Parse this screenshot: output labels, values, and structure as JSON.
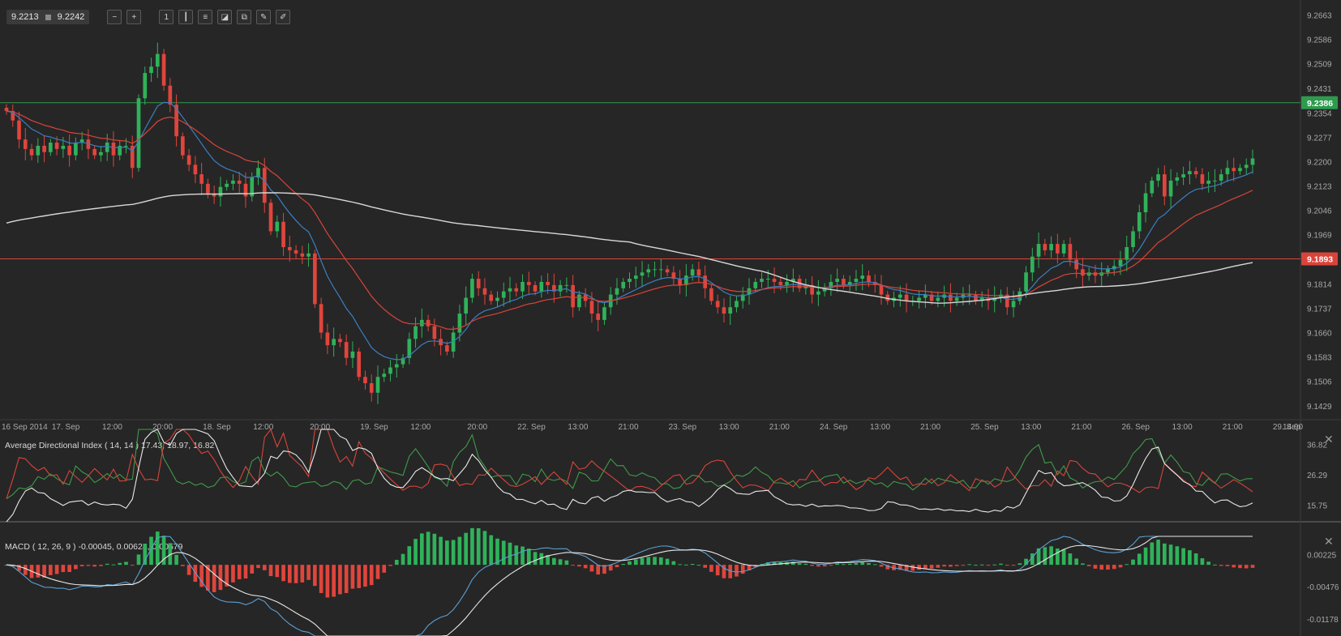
{
  "toolbar": {
    "bid": "9.2213",
    "ask": "9.2242",
    "icons": [
      "zoom-out-icon",
      "zoom-in-icon",
      "timeframe-icon",
      "candles-icon",
      "indicators-icon",
      "draw-icon",
      "layers-icon",
      "edit-icon",
      "pen-icon"
    ],
    "timeframe_label": "1"
  },
  "colors": {
    "background": "#262626",
    "up_candle": "#2fb25a",
    "down_candle": "#e0453c",
    "ma_fast": "#3a7fc2",
    "ma_mid": "#d9443a",
    "ma_slow": "#d8d8d8",
    "green_level": "#2e9a4e",
    "red_level": "#d9443a"
  },
  "chart_data": [
    {
      "type": "candlestick",
      "name": "price",
      "y_ticks": [
        "9.2663",
        "9.2586",
        "9.2509",
        "9.2431",
        "9.2354",
        "9.2277",
        "9.2200",
        "9.2123",
        "9.2046",
        "9.1969",
        "9.1814",
        "9.1737",
        "9.1660",
        "9.1583",
        "9.1506",
        "9.1429"
      ],
      "ylim": [
        9.139,
        9.269
      ],
      "x_ticks": [
        "16 Sep 2014",
        "17. Sep",
        "12:00",
        "20:00",
        "18. Sep",
        "12:00",
        "20:00",
        "19. Sep",
        "12:00",
        "20:00",
        "22. Sep",
        "13:00",
        "21:00",
        "23. Sep",
        "13:00",
        "21:00",
        "24. Sep",
        "13:00",
        "21:00",
        "25. Sep",
        "13:00",
        "21:00",
        "26. Sep",
        "13:00",
        "21:00",
        "29. Sep",
        "14:00"
      ],
      "levels": [
        {
          "value": 9.2386,
          "label": "9.2386",
          "color": "green"
        },
        {
          "value": 9.1893,
          "label": "9.1893",
          "color": "red"
        }
      ],
      "close": [
        9.236,
        9.233,
        9.227,
        9.224,
        9.222,
        9.225,
        9.223,
        9.226,
        9.224,
        9.225,
        9.222,
        9.226,
        9.227,
        9.224,
        9.222,
        9.223,
        9.226,
        9.222,
        9.225,
        9.225,
        9.218,
        9.24,
        9.248,
        9.25,
        9.254,
        9.244,
        9.238,
        9.228,
        9.222,
        9.219,
        9.216,
        9.213,
        9.21,
        9.209,
        9.212,
        9.213,
        9.214,
        9.213,
        9.209,
        9.215,
        9.218,
        9.207,
        9.198,
        9.201,
        9.193,
        9.192,
        9.191,
        9.19,
        9.191,
        9.175,
        9.166,
        9.162,
        9.164,
        9.163,
        9.158,
        9.16,
        9.152,
        9.15,
        9.147,
        9.152,
        9.153,
        9.155,
        9.156,
        9.158,
        9.164,
        9.168,
        9.17,
        9.168,
        9.164,
        9.162,
        9.16,
        9.166,
        9.172,
        9.177,
        9.183,
        9.18,
        9.178,
        9.176,
        9.177,
        9.179,
        9.18,
        9.179,
        9.182,
        9.181,
        9.179,
        9.182,
        9.181,
        9.179,
        9.181,
        9.181,
        9.174,
        9.178,
        9.176,
        9.172,
        9.17,
        9.174,
        9.178,
        9.18,
        9.182,
        9.183,
        9.184,
        9.185,
        9.186,
        9.186,
        9.186,
        9.185,
        9.183,
        9.181,
        9.184,
        9.186,
        9.184,
        9.18,
        9.176,
        9.174,
        9.172,
        9.174,
        9.176,
        9.178,
        9.18,
        9.182,
        9.183,
        9.183,
        9.182,
        9.181,
        9.182,
        9.183,
        9.18,
        9.181,
        9.178,
        9.179,
        9.18,
        9.182,
        9.183,
        9.181,
        9.182,
        9.183,
        9.184,
        9.182,
        9.181,
        9.178,
        9.176,
        9.177,
        9.178,
        9.176,
        9.176,
        9.177,
        9.178,
        9.176,
        9.177,
        9.178,
        9.176,
        9.177,
        9.178,
        9.178,
        9.176,
        9.177,
        9.176,
        9.177,
        9.178,
        9.174,
        9.176,
        9.179,
        9.185,
        9.19,
        9.194,
        9.192,
        9.194,
        9.191,
        9.194,
        9.189,
        9.186,
        9.184,
        9.185,
        9.184,
        9.185,
        9.186,
        9.187,
        9.189,
        9.193,
        9.198,
        9.204,
        9.21,
        9.214,
        9.216,
        9.209,
        9.214,
        9.215,
        9.216,
        9.217,
        9.216,
        9.213,
        9.214,
        9.214,
        9.216,
        9.218,
        9.217,
        9.218,
        9.219,
        9.221
      ]
    },
    {
      "type": "line",
      "name": "Average Directional Index",
      "title": "Average Directional Index ( 14, 14 ) 17.43, 18.97, 16.82",
      "y_ticks": [
        "36.82",
        "26.29",
        "15.75"
      ],
      "ylim": [
        10,
        42
      ]
    },
    {
      "type": "line+bar",
      "name": "MACD",
      "title": "MACD ( 12, 26, 9 ) -0.00045, 0.00624, 0.00579",
      "y_ticks": [
        "0.00225",
        "-0.00476",
        "-0.01178"
      ],
      "ylim": [
        -0.0155,
        0.0062
      ]
    }
  ]
}
